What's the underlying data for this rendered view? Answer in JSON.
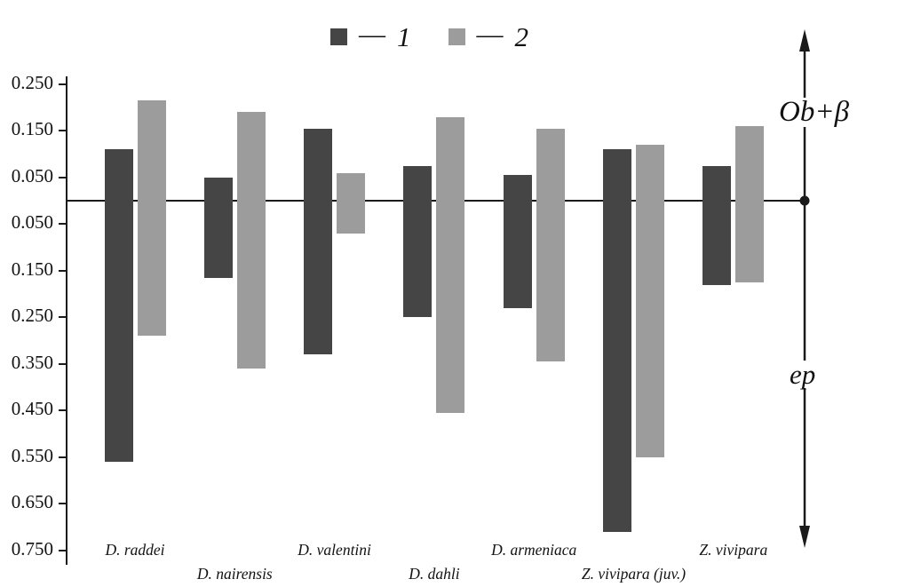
{
  "legend": {
    "separator": "—",
    "items": [
      {
        "label": "1"
      },
      {
        "label": "2"
      }
    ]
  },
  "y_axis": {
    "tick_labels": [
      "0.250",
      "0.150",
      "0.050",
      "0.050",
      "0.150",
      "0.250",
      "0.350",
      "0.450",
      "0.550",
      "0.650",
      "0.750"
    ],
    "tick_values": [
      0.25,
      0.15,
      0.05,
      -0.05,
      -0.15,
      -0.25,
      -0.35,
      -0.45,
      -0.55,
      -0.65,
      -0.75
    ]
  },
  "region_labels": {
    "positive": "Ob+β",
    "negative": "ep"
  },
  "chart_data": {
    "type": "bar",
    "title": "",
    "orientation": "vertical-diverging",
    "grid": false,
    "legend_position": "top",
    "ylim": [
      -0.75,
      0.25
    ],
    "zero_line": 0,
    "categories": [
      "D. raddei",
      "D. nairensis",
      "D. valentini",
      "D. dahli",
      "D. armeniaca",
      "Z. vivipara (juv.)",
      "Z. vivipara"
    ],
    "series": [
      {
        "name": "1",
        "color": "#454545",
        "top": [
          0.11,
          0.05,
          0.155,
          0.075,
          0.055,
          0.11,
          0.075
        ],
        "bottom": [
          -0.56,
          -0.165,
          -0.33,
          -0.25,
          -0.23,
          -0.71,
          -0.18
        ]
      },
      {
        "name": "2",
        "color": "#9c9c9c",
        "top": [
          0.215,
          0.19,
          0.06,
          0.18,
          0.155,
          0.12,
          0.16
        ],
        "bottom": [
          -0.29,
          -0.36,
          -0.07,
          -0.455,
          -0.345,
          -0.55,
          -0.175
        ]
      }
    ],
    "annotations": {
      "positive_region": "Ob+β",
      "negative_region": "ep"
    }
  }
}
